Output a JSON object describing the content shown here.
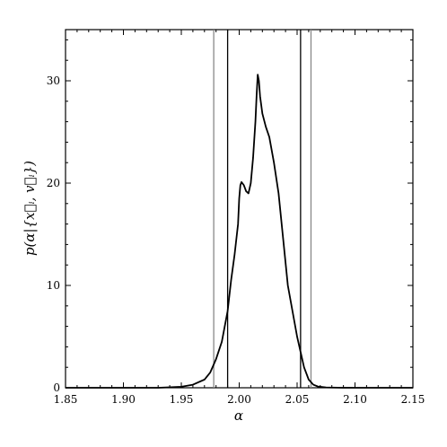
{
  "chart_data": {
    "type": "line",
    "xlabel": "α",
    "ylabel": "p(α|{x⃗ᵢ, v⃗ᵢ})",
    "xlim": [
      1.85,
      2.15
    ],
    "ylim": [
      0,
      35
    ],
    "x_ticks": [
      1.85,
      1.9,
      1.95,
      2.0,
      2.05,
      2.1,
      2.15
    ],
    "x_tick_labels": [
      "1.85",
      "1.90",
      "1.95",
      "2.00",
      "2.05",
      "2.10",
      "2.15"
    ],
    "y_ticks": [
      0,
      10,
      20,
      30
    ],
    "y_tick_labels": [
      "0",
      "10",
      "20",
      "30"
    ],
    "grid": false,
    "series": [
      {
        "color": "#000000",
        "x": [
          1.85,
          1.93,
          1.95,
          1.96,
          1.97,
          1.975,
          1.98,
          1.985,
          1.99,
          1.993,
          1.996,
          1.999,
          2.0,
          2.001,
          2.002,
          2.004,
          2.006,
          2.008,
          2.01,
          2.012,
          2.014,
          2.015,
          2.016,
          2.017,
          2.018,
          2.02,
          2.023,
          2.026,
          2.03,
          2.034,
          2.038,
          2.042,
          2.046,
          2.05,
          2.053,
          2.056,
          2.06,
          2.064,
          2.068,
          2.075,
          2.085,
          2.1,
          2.15
        ],
        "y": [
          0,
          0,
          0.1,
          0.3,
          0.8,
          1.5,
          2.8,
          4.5,
          7.5,
          10.5,
          13.0,
          16.0,
          18.5,
          19.8,
          20.1,
          19.8,
          19.2,
          19.0,
          20.0,
          22.5,
          26.0,
          28.5,
          30.6,
          30.0,
          28.5,
          26.8,
          25.5,
          24.5,
          22.0,
          19.0,
          14.5,
          10.0,
          7.5,
          5.0,
          3.5,
          2.0,
          0.8,
          0.3,
          0.12,
          0.03,
          0.01,
          0,
          0
        ]
      }
    ],
    "vertical_lines": [
      {
        "x": 1.978,
        "color": "#888888"
      },
      {
        "x": 1.99,
        "color": "#000000"
      },
      {
        "x": 2.053,
        "color": "#000000"
      },
      {
        "x": 2.062,
        "color": "#888888"
      }
    ]
  }
}
